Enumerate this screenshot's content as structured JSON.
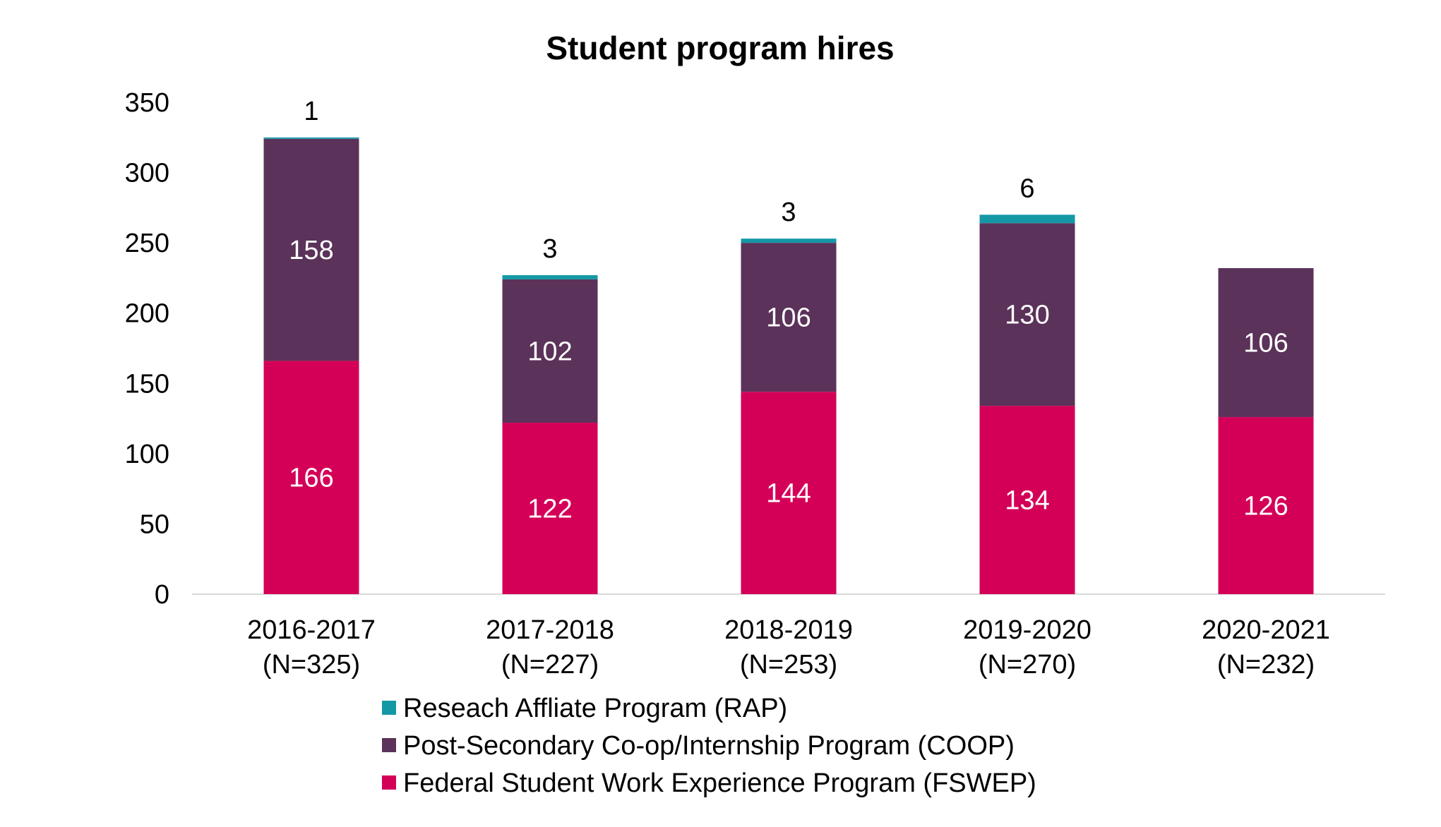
{
  "chart_data": {
    "type": "bar",
    "stacked": true,
    "title": "Student program hires",
    "xlabel": "",
    "ylabel": "",
    "ylim": [
      0,
      350
    ],
    "yticks": [
      0,
      50,
      100,
      150,
      200,
      250,
      300,
      350
    ],
    "grid": false,
    "legend_position": "bottom",
    "categories": [
      "2016-2017",
      "2017-2018",
      "2018-2019",
      "2019-2020",
      "2020-2021"
    ],
    "category_counts": [
      "(N=325)",
      "(N=227)",
      "(N=253)",
      "(N=270)",
      "(N=232)"
    ],
    "series": [
      {
        "name": "Federal Student Work Experience Program (FSWEP)",
        "color": "#d40058",
        "label_color": "#ffffff",
        "values": [
          166,
          122,
          144,
          134,
          126
        ]
      },
      {
        "name": "Post-Secondary Co-op/Internship Program (COOP)",
        "color": "#5b3259",
        "label_color": "#ffffff",
        "values": [
          158,
          102,
          106,
          130,
          106
        ]
      },
      {
        "name": "Reseach Affliate Program (RAP)",
        "color": "#1598a6",
        "label_color": "#000000",
        "values": [
          1,
          3,
          3,
          6,
          0
        ]
      }
    ],
    "legend_order": [
      2,
      1,
      0
    ]
  }
}
